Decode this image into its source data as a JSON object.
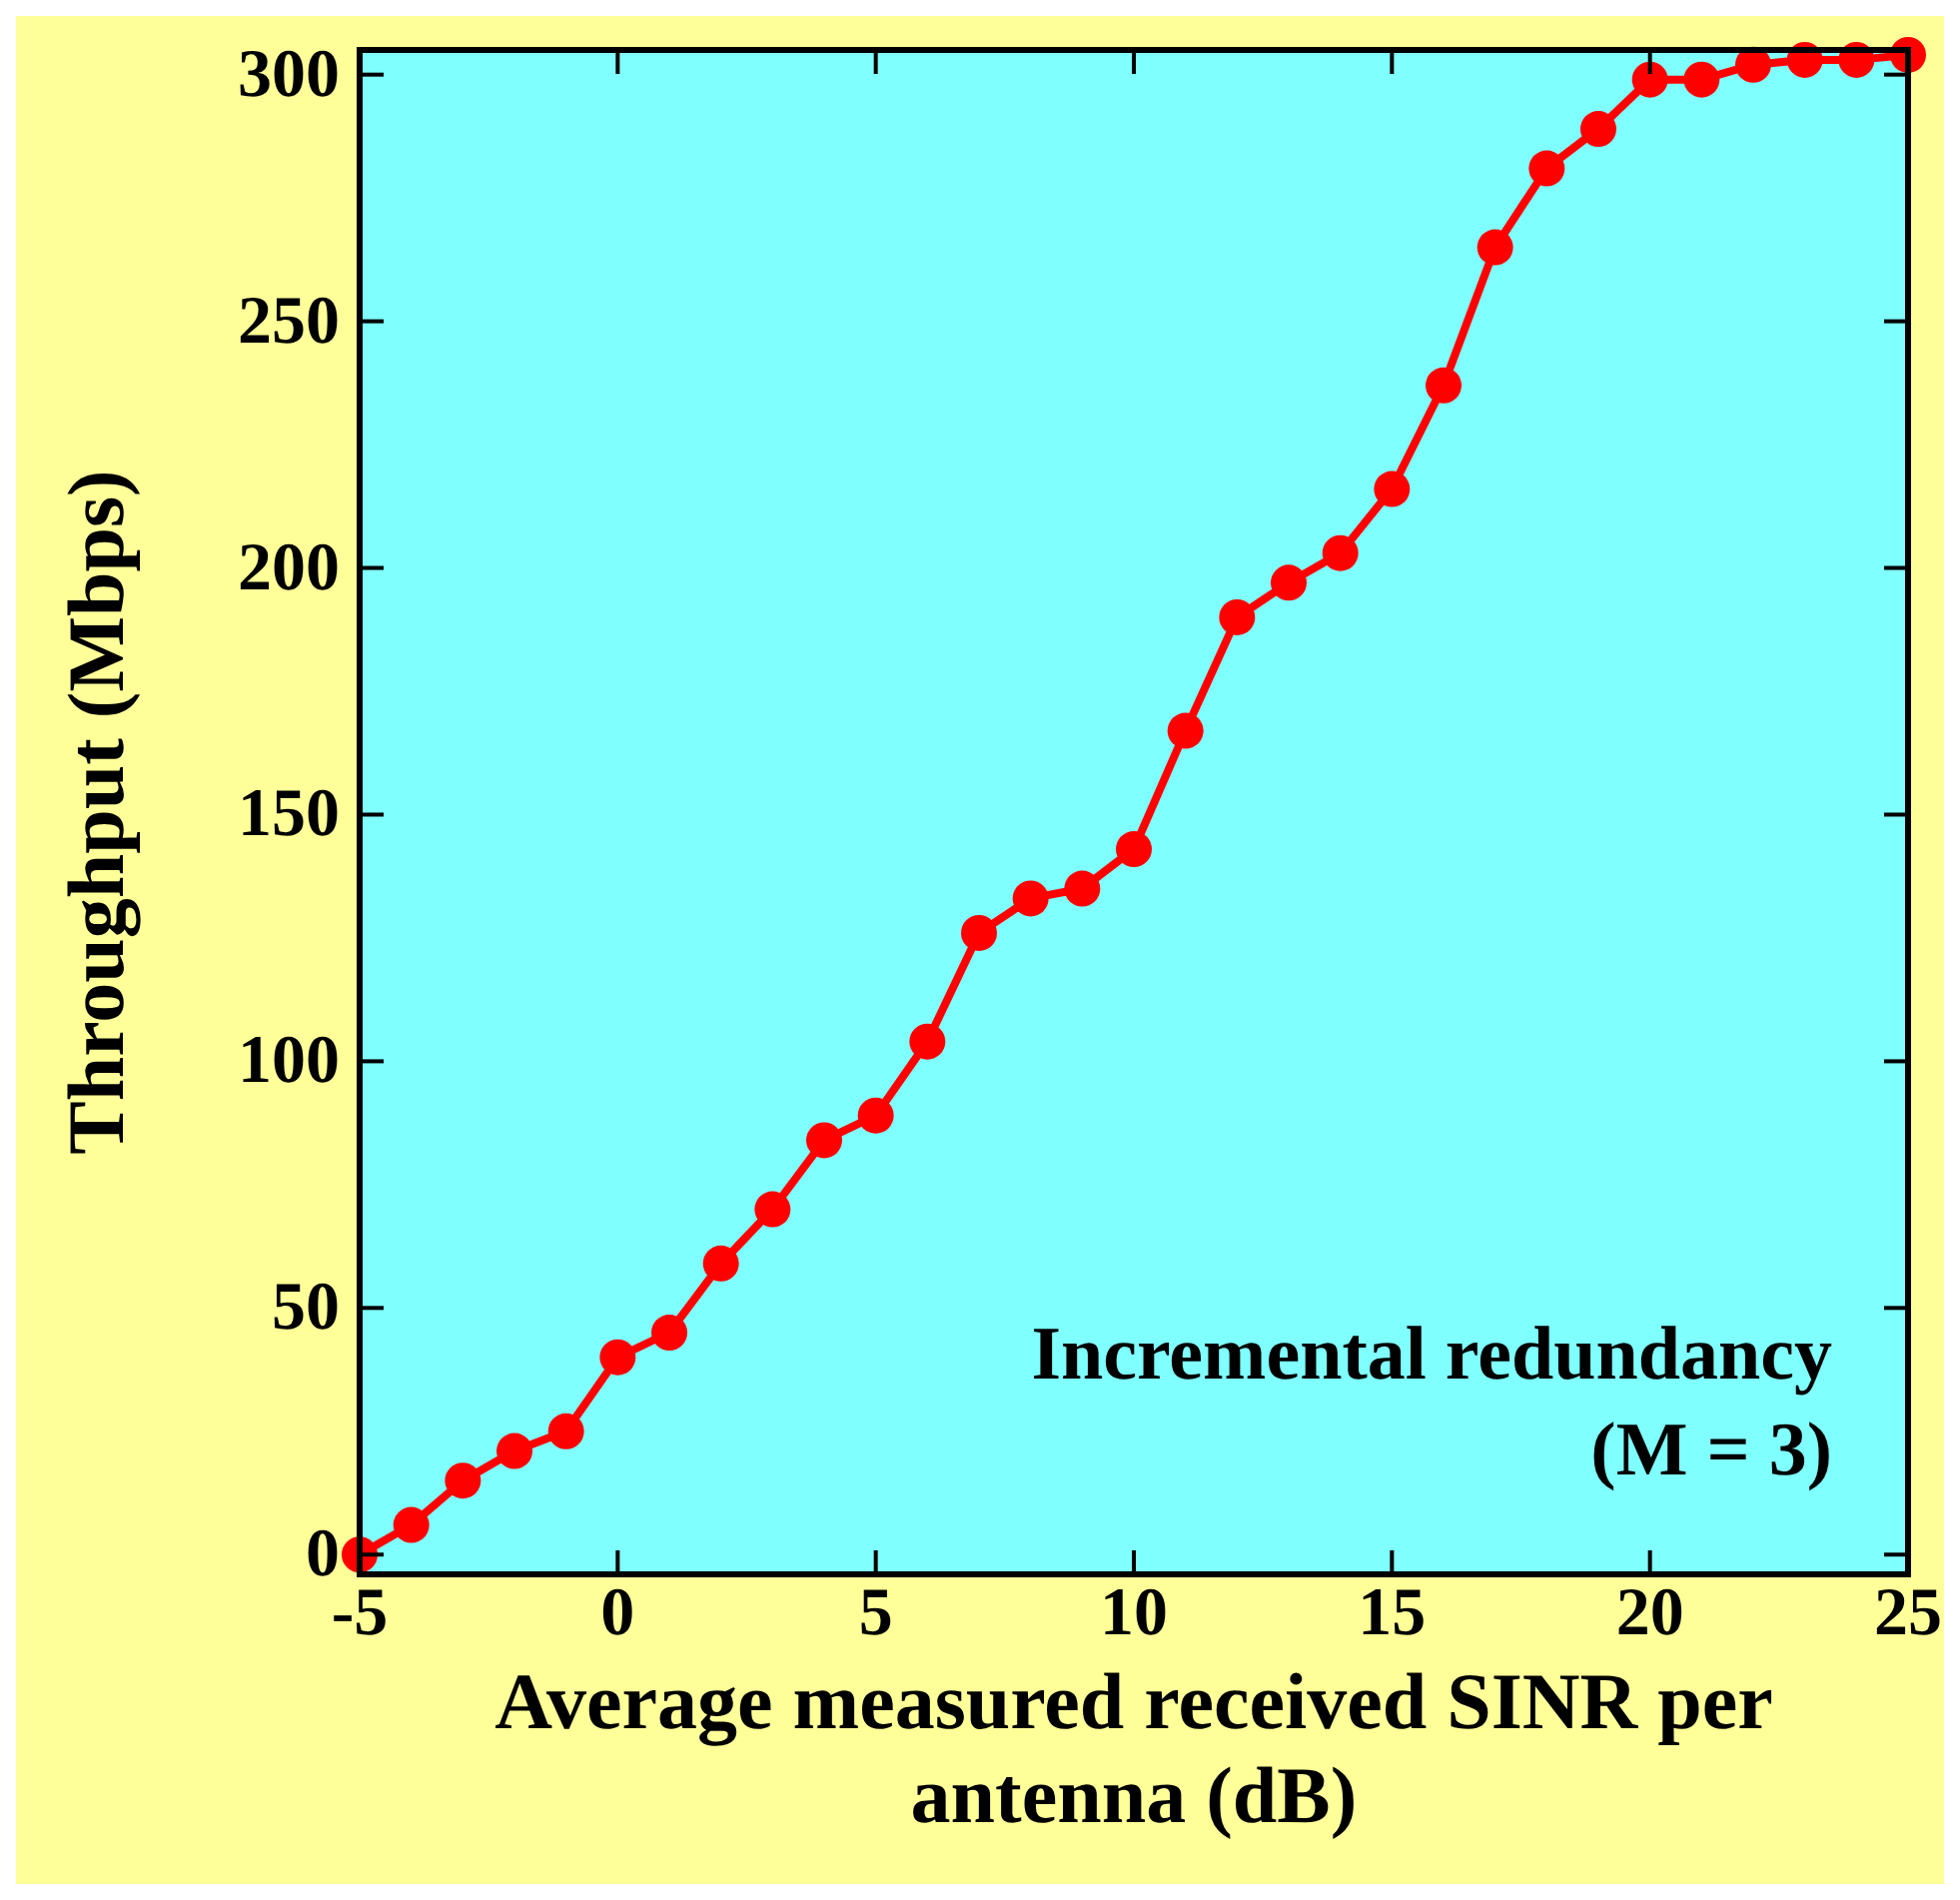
{
  "chart_data": {
    "type": "line",
    "xlabel": "Average measured received SINR per antenna (dB)",
    "ylabel": "Throughput (Mbps)",
    "x": [
      -5,
      -4,
      -3,
      -2,
      -1,
      0,
      1,
      2,
      3,
      4,
      5,
      6,
      7,
      8,
      9,
      10,
      11,
      12,
      13,
      14,
      15,
      16,
      17,
      18,
      19,
      20,
      21,
      22,
      23,
      24,
      25
    ],
    "series": [
      {
        "color": "#ff0000",
        "values": [
          0,
          6,
          15,
          21,
          25,
          40,
          45,
          59,
          70,
          84,
          89,
          104,
          126,
          133,
          135,
          143,
          167,
          190,
          197,
          203,
          216,
          237,
          265,
          281,
          289,
          299,
          299,
          302,
          303,
          303,
          304
        ]
      }
    ],
    "xlim": [
      -5,
      25
    ],
    "ylim": [
      -4,
      305
    ],
    "xticks": [
      -5,
      0,
      5,
      10,
      15,
      20,
      25
    ],
    "yticks": [
      0,
      50,
      100,
      150,
      200,
      250,
      300
    ],
    "marker": "circle",
    "line_style": "solid",
    "grid": false,
    "annotations": [
      "Incremental redundancy",
      "(M = 3)"
    ]
  }
}
